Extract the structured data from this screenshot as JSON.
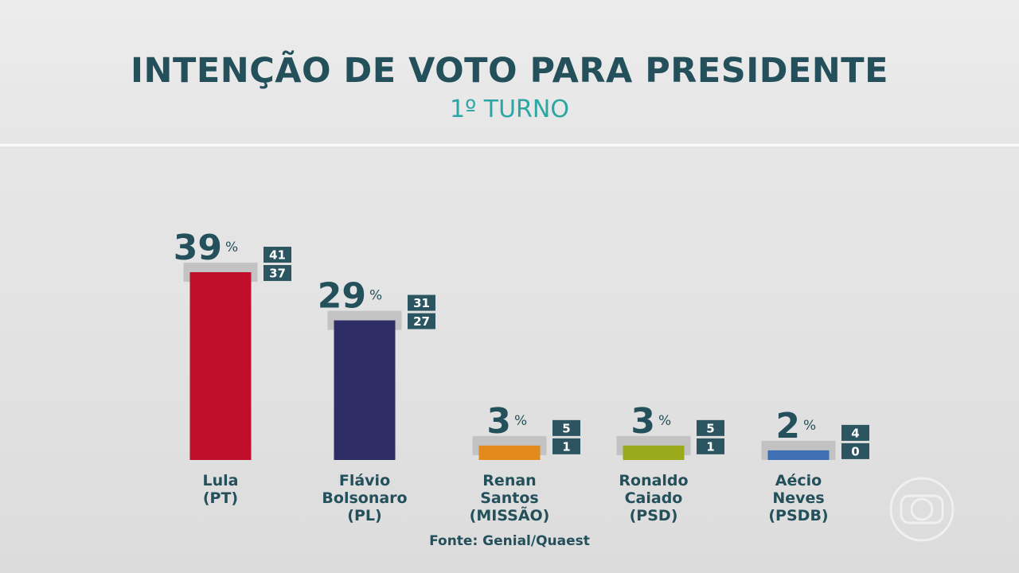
{
  "chart_data": {
    "type": "bar",
    "title": "INTENÇÃO DE VOTO PARA PRESIDENTE",
    "subtitle": "1º TURNO",
    "percent_symbol": "%",
    "source": "Fonte: Genial/Quaest",
    "ylim": [
      0,
      45
    ],
    "series": [
      {
        "candidate": [
          "Lula",
          "(PT)"
        ],
        "value": 39,
        "low": 37,
        "high": 41,
        "color": "#bf0f2a",
        "value_label": "39",
        "high_label": "41",
        "low_label": "37"
      },
      {
        "candidate": [
          "Flávio",
          "Bolsonaro",
          "(PL)"
        ],
        "value": 29,
        "low": 27,
        "high": 31,
        "color": "#2e2d66",
        "value_label": "29",
        "high_label": "31",
        "low_label": "27"
      },
      {
        "candidate": [
          "Renan",
          "Santos",
          "(MISSÃO)"
        ],
        "value": 3,
        "low": 1,
        "high": 5,
        "color": "#e38a1c",
        "value_label": "3",
        "high_label": "5",
        "low_label": "1"
      },
      {
        "candidate": [
          "Ronaldo",
          "Caiado",
          "(PSD)"
        ],
        "value": 3,
        "low": 1,
        "high": 5,
        "color": "#9aaa1a",
        "value_label": "3",
        "high_label": "5",
        "low_label": "1"
      },
      {
        "candidate": [
          "Aécio",
          "Neves",
          "(PSDB)"
        ],
        "value": 2,
        "low": 0,
        "high": 4,
        "color": "#3f70b5",
        "value_label": "2",
        "high_label": "4",
        "low_label": "0"
      }
    ]
  },
  "colors": {
    "title": "#23505a",
    "subtitle": "#2aa6a4",
    "margin_band": "#bdbdbd",
    "box": "#2b5560"
  },
  "watermark_icon": "globo-logo-icon"
}
